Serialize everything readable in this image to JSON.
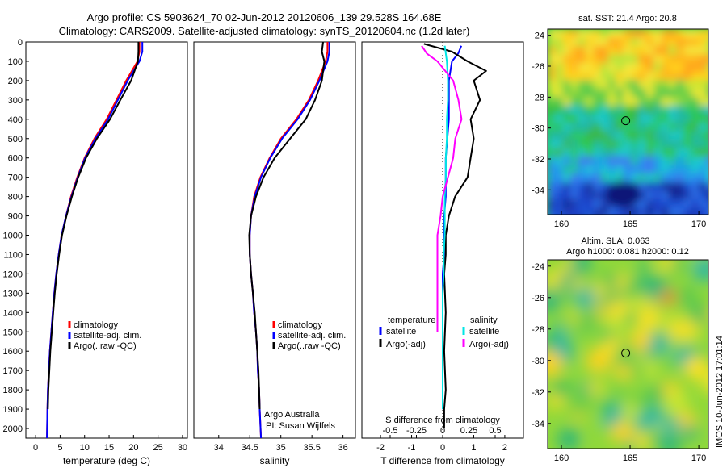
{
  "header": {
    "title1": "Argo profile: CS 5903624_70 02-Jun-2012 20120606_139 29.528S 164.68E",
    "title2": "Climatology: CARS2009. Satellite-adjusted climatology: synTS_20120604.nc (1.2d later)"
  },
  "side": {
    "sst_title": "sat. SST: 21.4 Argo: 20.8",
    "sla_title1": "Altim. SLA: 0.063",
    "sla_title2": "Argo h1000: 0.081 h2000: 0.12",
    "stamp": "IMOS 10-Jun-2012 17:01:14",
    "lat_ticks": [
      "-24",
      "-26",
      "-28",
      "-30",
      "-32",
      "-34"
    ],
    "lon_ticks": [
      "160",
      "165",
      "170"
    ],
    "float_lon": 164.68,
    "float_lat": -29.528
  },
  "colors": {
    "climatology": "#ff0000",
    "satellite": "#0000ff",
    "argo": "#000000",
    "sat_salinity": "#00e5e5",
    "argo_salinity": "#ff00ff"
  },
  "chart_data": [
    {
      "type": "line",
      "xlabel": "temperature (deg C)",
      "ylabel": "",
      "xlim": [
        -2,
        31
      ],
      "ylim": [
        2050,
        0
      ],
      "xticks": [
        0,
        5,
        10,
        15,
        20,
        25,
        30
      ],
      "yticks": [
        0,
        100,
        200,
        300,
        400,
        500,
        600,
        700,
        800,
        900,
        1000,
        1100,
        1200,
        1300,
        1400,
        1500,
        1600,
        1700,
        1800,
        1900,
        2000
      ],
      "legend": [
        "climatology",
        "satellite-adj. clim.",
        "Argo(..raw -QC)"
      ],
      "series": [
        {
          "name": "climatology",
          "color": "#ff0000",
          "x": [
            21.2,
            21.2,
            20.8,
            18.5,
            16.5,
            14.5,
            12.0,
            10.0,
            8.5,
            7.2,
            6.2,
            5.3,
            4.7,
            4.2,
            3.8,
            3.5,
            3.2,
            2.9,
            2.7,
            2.5,
            2.4,
            2.3
          ],
          "y": [
            0,
            50,
            100,
            200,
            300,
            400,
            500,
            600,
            700,
            800,
            900,
            1000,
            1100,
            1200,
            1300,
            1400,
            1500,
            1600,
            1700,
            1800,
            1900,
            2050
          ]
        },
        {
          "name": "satellite-adj. clim.",
          "color": "#0000ff",
          "x": [
            21.8,
            21.8,
            21.2,
            18.8,
            16.8,
            14.8,
            12.2,
            10.1,
            8.6,
            7.3,
            6.2,
            5.3,
            4.7,
            4.2,
            3.8,
            3.5,
            3.2,
            2.9,
            2.7,
            2.5,
            2.4,
            2.3
          ],
          "y": [
            0,
            50,
            100,
            200,
            300,
            400,
            500,
            600,
            700,
            800,
            900,
            1000,
            1100,
            1200,
            1300,
            1400,
            1500,
            1600,
            1700,
            1800,
            1900,
            2050
          ]
        },
        {
          "name": "Argo(..raw -QC)",
          "color": "#000000",
          "x": [
            21.0,
            21.0,
            20.9,
            19.5,
            17.3,
            15.2,
            12.5,
            10.3,
            8.7,
            7.4,
            6.3,
            5.4,
            4.8,
            4.3,
            3.9,
            3.6,
            3.3,
            3.0,
            2.8,
            2.6,
            2.5
          ],
          "y": [
            0,
            50,
            100,
            200,
            300,
            400,
            500,
            600,
            700,
            800,
            900,
            1000,
            1100,
            1200,
            1300,
            1400,
            1500,
            1600,
            1700,
            1800,
            1900
          ]
        }
      ]
    },
    {
      "type": "line",
      "xlabel": "salinity",
      "ylabel": "",
      "xlim": [
        33.6,
        36.2
      ],
      "ylim": [
        2050,
        0
      ],
      "xticks": [
        34,
        34.5,
        35,
        35.5,
        36
      ],
      "legend": [
        "climatology",
        "satellite-adj. clim.",
        "Argo(..raw -QC)"
      ],
      "annotation": [
        "Argo Australia",
        "PI: Susan Wijffels"
      ],
      "series": [
        {
          "name": "climatology",
          "color": "#ff0000",
          "x": [
            35.75,
            35.75,
            35.72,
            35.6,
            35.45,
            35.25,
            35.0,
            34.82,
            34.67,
            34.57,
            34.52,
            34.5,
            34.5,
            34.52,
            34.55,
            34.57,
            34.6,
            34.62,
            34.63,
            34.65,
            34.66,
            34.68
          ],
          "y": [
            0,
            50,
            100,
            200,
            300,
            400,
            500,
            600,
            700,
            800,
            900,
            1000,
            1100,
            1200,
            1300,
            1400,
            1500,
            1600,
            1700,
            1800,
            1900,
            2050
          ]
        },
        {
          "name": "satellite-adj. clim.",
          "color": "#0000ff",
          "x": [
            35.78,
            35.78,
            35.75,
            35.62,
            35.47,
            35.27,
            35.02,
            34.83,
            34.68,
            34.58,
            34.52,
            34.5,
            34.5,
            34.52,
            34.55,
            34.57,
            34.6,
            34.62,
            34.63,
            34.65,
            34.66,
            34.68
          ],
          "y": [
            0,
            50,
            100,
            200,
            300,
            400,
            500,
            600,
            700,
            800,
            900,
            1000,
            1100,
            1200,
            1300,
            1400,
            1500,
            1600,
            1700,
            1800,
            1900,
            2050
          ]
        },
        {
          "name": "Argo(..raw -QC)",
          "color": "#000000",
          "x": [
            35.68,
            35.66,
            35.7,
            35.66,
            35.55,
            35.4,
            35.15,
            34.9,
            34.72,
            34.6,
            34.52,
            34.49,
            34.5,
            34.52,
            34.55,
            34.58,
            34.6,
            34.62,
            34.64,
            34.65,
            34.66
          ],
          "y": [
            0,
            50,
            100,
            200,
            300,
            400,
            500,
            600,
            700,
            800,
            900,
            1000,
            1100,
            1200,
            1300,
            1400,
            1500,
            1600,
            1700,
            1800,
            1900
          ]
        }
      ]
    },
    {
      "type": "line",
      "xlabel": "T difference from climatology",
      "xlabel_top": "S difference from climatology",
      "ylabel": "",
      "xlim": [
        -2.6,
        2.6
      ],
      "ylim": [
        2050,
        0
      ],
      "xticks": [
        -2,
        -1,
        0,
        1,
        2
      ],
      "s_ticks": [
        -0.5,
        -0.25,
        0,
        0.25,
        0.5
      ],
      "legend_titles": [
        "temperature",
        "salinity"
      ],
      "legend": [
        "satellite",
        "Argo(-adj)",
        "satellite",
        "Argo(-adj)"
      ],
      "series": [
        {
          "name": "temperature satellite",
          "color": "#0000ff",
          "x": [
            0.6,
            0.5,
            0.3,
            0.2,
            0.2,
            0.2,
            0.15,
            0.1,
            0.1,
            0.1,
            0.05,
            0.05,
            0.05,
            0,
            0,
            0,
            0,
            0,
            0,
            0
          ],
          "y": [
            20,
            60,
            100,
            200,
            300,
            400,
            500,
            600,
            700,
            800,
            900,
            1000,
            1100,
            1200,
            1300,
            1400,
            1500,
            1600,
            1700,
            1900
          ]
        },
        {
          "name": "temperature Argo(-adj)",
          "color": "#000000",
          "x": [
            -0.6,
            0.3,
            0.8,
            1.4,
            1.0,
            1.2,
            0.9,
            1.0,
            0.9,
            0.8,
            0.4,
            0.2,
            0.1,
            0.1,
            0.05,
            0.1,
            0.05,
            0.1,
            0.05,
            0.05
          ],
          "y": [
            10,
            50,
            100,
            150,
            200,
            300,
            400,
            500,
            600,
            700,
            800,
            900,
            1000,
            1100,
            1200,
            1400,
            1600,
            1800,
            1900,
            2000
          ]
        },
        {
          "name": "salinity satellite",
          "color": "#00e5e5",
          "x": [
            0.02,
            0.04,
            0.05,
            0.05,
            0.04,
            0.04,
            0.03,
            0.03,
            0.02,
            0.02,
            0.02,
            0.01,
            0.01,
            0,
            0,
            0,
            0
          ],
          "y": [
            20,
            100,
            200,
            300,
            400,
            500,
            600,
            700,
            800,
            900,
            1000,
            1100,
            1200,
            1300,
            1500,
            1700,
            1900
          ]
        },
        {
          "name": "salinity Argo(-adj)",
          "color": "#ff00ff",
          "x": [
            -0.2,
            -0.15,
            -0.05,
            0.1,
            0.15,
            0.18,
            0.12,
            0.1,
            0.05,
            0,
            -0.02,
            -0.05,
            -0.05,
            -0.05,
            -0.05
          ],
          "y": [
            20,
            60,
            100,
            200,
            300,
            400,
            500,
            600,
            700,
            800,
            900,
            1000,
            1100,
            1300,
            1500
          ]
        }
      ]
    },
    {
      "type": "heatmap",
      "title": "sat. SST: 21.4 Argo: 20.8",
      "xlim": [
        159,
        170.7
      ],
      "ylim": [
        -35.6,
        -23.6
      ],
      "note": "sea surface temperature field around float position (circle)"
    },
    {
      "type": "heatmap",
      "title": "Altim. SLA: 0.063 / Argo h1000: 0.081 h2000: 0.12",
      "xlim": [
        159,
        170.7
      ],
      "ylim": [
        -35.6,
        -23.6
      ],
      "note": "sea level anomaly field around float position (circle)"
    }
  ]
}
